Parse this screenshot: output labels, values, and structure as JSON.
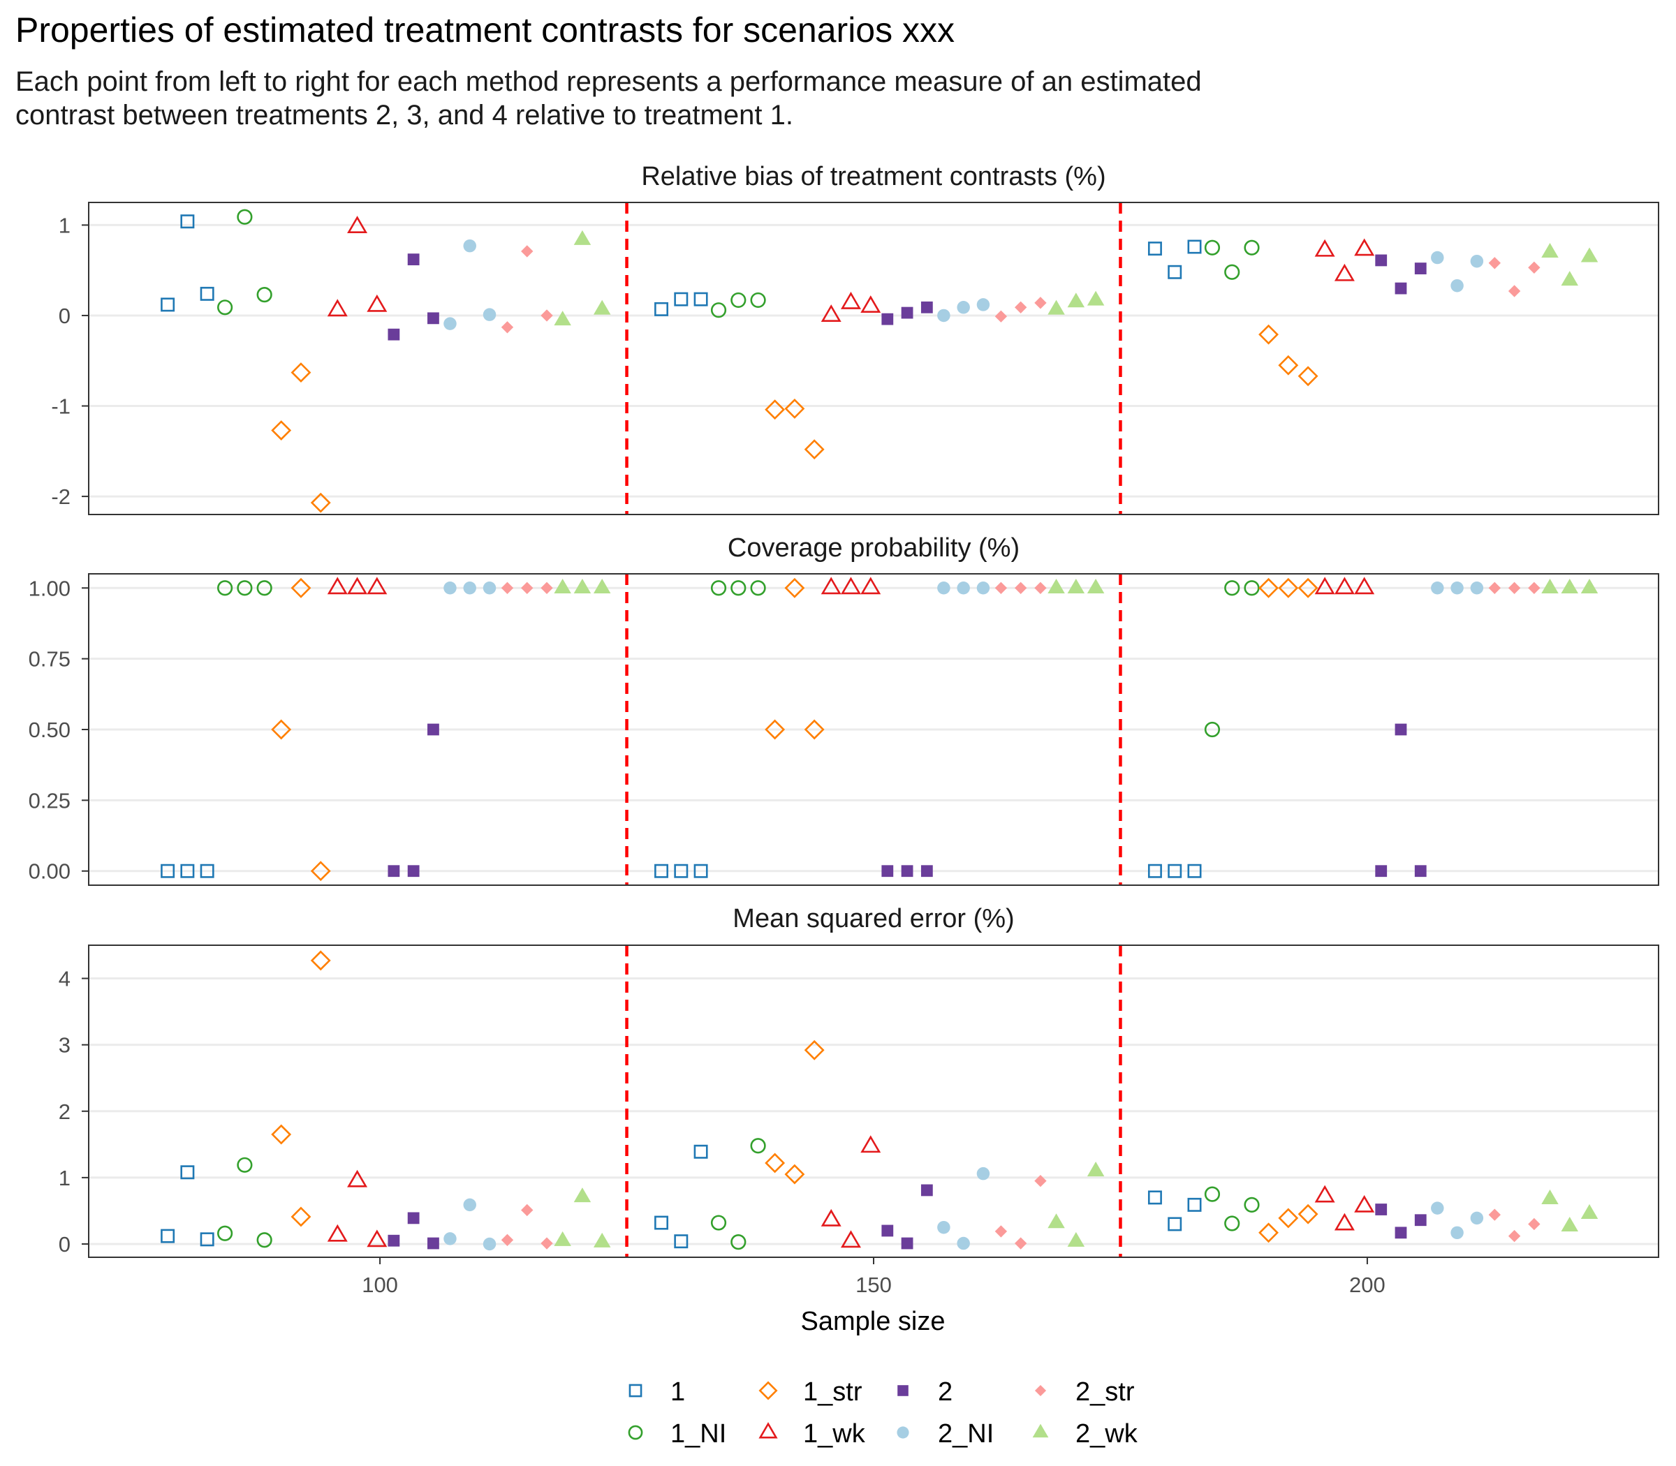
{
  "chart_data": {
    "type": "scatter",
    "title": "Properties of estimated treatment contrasts for scenarios xxx",
    "subtitle_lines": [
      "Each point from left to right for each method represents a performance measure of an estimated",
      "contrast between treatments 2, 3, and 4 relative to treatment 1."
    ],
    "xlabel": "Sample size",
    "x_ticks": [
      100,
      150,
      200
    ],
    "xlim": [
      70.5,
      229.5
    ],
    "sample_sizes": [
      100,
      150,
      200
    ],
    "reference_lines_x": [
      125,
      175
    ],
    "methods": [
      "1",
      "1_NI",
      "1_str",
      "1_wk",
      "2",
      "2_NI",
      "2_str",
      "2_wk"
    ],
    "method_styles": {
      "1": {
        "shape": "square-open",
        "color": "#1F78B4"
      },
      "1_NI": {
        "shape": "circle-open",
        "color": "#33A02C"
      },
      "1_str": {
        "shape": "diamond-open",
        "color": "#FF7F00"
      },
      "1_wk": {
        "shape": "triangle-open",
        "color": "#E31A1C"
      },
      "2": {
        "shape": "square-filled",
        "color": "#6A3D9A"
      },
      "2_NI": {
        "shape": "circle-filled",
        "color": "#A6CEE3"
      },
      "2_str": {
        "shape": "diamond-filled",
        "color": "#FB9A99"
      },
      "2_wk": {
        "shape": "triangle-filled",
        "color": "#B2DF8A"
      }
    },
    "reference_line_color": "#FF0000",
    "panels": [
      {
        "title": "Relative bias of treatment contrasts (%)",
        "ylim": [
          -2.2,
          1.25
        ],
        "y_ticks": [
          -2,
          -1,
          0,
          1
        ],
        "y_tick_labels": [
          "-2",
          "-1",
          "0",
          "1"
        ],
        "series": [
          {
            "name": "1",
            "x": [
              78.5,
              80.5,
              82.5,
              128.5,
              130.5,
              132.5,
              178.5,
              180.5,
              182.5
            ],
            "values": [
              0.12,
              1.04,
              0.24,
              0.07,
              0.18,
              0.18,
              0.74,
              0.48,
              0.76
            ]
          },
          {
            "name": "1_NI",
            "x": [
              84.3,
              86.3,
              88.3,
              134.3,
              136.3,
              138.3,
              184.3,
              186.3,
              188.3
            ],
            "values": [
              0.09,
              1.09,
              0.23,
              0.06,
              0.17,
              0.17,
              0.75,
              0.48,
              0.75
            ]
          },
          {
            "name": "1_str",
            "x": [
              90.0,
              92.0,
              94.0,
              140.0,
              142.0,
              144.0,
              190.0,
              192.0,
              194.0
            ],
            "values": [
              -1.27,
              -0.63,
              -2.07,
              -1.04,
              -1.03,
              -1.48,
              -0.21,
              -0.55,
              -0.67
            ]
          },
          {
            "name": "1_wk",
            "x": [
              95.7,
              97.7,
              99.7,
              145.7,
              147.7,
              149.7,
              195.7,
              197.7,
              199.7
            ],
            "values": [
              0.06,
              0.98,
              0.11,
              0.0,
              0.14,
              0.1,
              0.72,
              0.45,
              0.73
            ]
          },
          {
            "name": "2",
            "x": [
              101.4,
              103.4,
              105.4,
              151.4,
              153.4,
              155.4,
              201.4,
              203.4,
              205.4
            ],
            "values": [
              -0.21,
              0.62,
              -0.03,
              -0.04,
              0.03,
              0.09,
              0.61,
              0.3,
              0.52
            ]
          },
          {
            "name": "2_NI",
            "x": [
              107.1,
              109.1,
              111.1,
              157.1,
              159.1,
              161.1,
              207.1,
              209.1,
              211.1
            ],
            "values": [
              -0.09,
              0.77,
              0.01,
              0.0,
              0.09,
              0.12,
              0.64,
              0.33,
              0.6
            ]
          },
          {
            "name": "2_str",
            "x": [
              112.9,
              114.9,
              116.9,
              162.9,
              164.9,
              166.9,
              212.9,
              214.9,
              216.9
            ],
            "values": [
              -0.13,
              0.71,
              0.0,
              -0.01,
              0.09,
              0.14,
              0.58,
              0.27,
              0.53
            ]
          },
          {
            "name": "2_wk",
            "x": [
              118.5,
              120.5,
              122.5,
              168.5,
              170.5,
              172.5,
              218.5,
              220.5,
              222.5
            ],
            "values": [
              -0.05,
              0.84,
              0.07,
              0.07,
              0.15,
              0.17,
              0.7,
              0.39,
              0.65
            ]
          }
        ]
      },
      {
        "title": "Coverage probability (%)",
        "ylim": [
          -0.05,
          1.05
        ],
        "y_ticks": [
          0,
          0.25,
          0.5,
          0.75,
          1
        ],
        "y_tick_labels": [
          "0.00",
          "0.25",
          "0.50",
          "0.75",
          "1.00"
        ],
        "series": [
          {
            "name": "1",
            "x": [
              78.5,
              80.5,
              82.5,
              128.5,
              130.5,
              132.5,
              178.5,
              180.5,
              182.5
            ],
            "values": [
              0,
              0,
              0,
              0,
              0,
              0,
              0,
              0,
              0
            ]
          },
          {
            "name": "1_NI",
            "x": [
              84.3,
              86.3,
              88.3,
              134.3,
              136.3,
              138.3,
              184.3,
              186.3,
              188.3
            ],
            "values": [
              1,
              1,
              1,
              1,
              1,
              1,
              0.5,
              1,
              1
            ]
          },
          {
            "name": "1_str",
            "x": [
              90.0,
              92.0,
              94.0,
              140.0,
              142.0,
              144.0,
              190.0,
              192.0,
              194.0
            ],
            "values": [
              0.5,
              1,
              0,
              0.5,
              1,
              0.5,
              1,
              1,
              1
            ]
          },
          {
            "name": "1_wk",
            "x": [
              95.7,
              97.7,
              99.7,
              145.7,
              147.7,
              149.7,
              195.7,
              197.7,
              199.7
            ],
            "values": [
              1,
              1,
              1,
              1,
              1,
              1,
              1,
              1,
              1
            ]
          },
          {
            "name": "2",
            "x": [
              101.4,
              103.4,
              105.4,
              151.4,
              153.4,
              155.4,
              201.4,
              203.4,
              205.4
            ],
            "values": [
              0,
              0,
              0.5,
              0,
              0,
              0,
              0,
              0.5,
              0
            ]
          },
          {
            "name": "2_NI",
            "x": [
              107.1,
              109.1,
              111.1,
              157.1,
              159.1,
              161.1,
              207.1,
              209.1,
              211.1
            ],
            "values": [
              1,
              1,
              1,
              1,
              1,
              1,
              1,
              1,
              1
            ]
          },
          {
            "name": "2_str",
            "x": [
              112.9,
              114.9,
              116.9,
              162.9,
              164.9,
              166.9,
              212.9,
              214.9,
              216.9
            ],
            "values": [
              1,
              1,
              1,
              1,
              1,
              1,
              1,
              1,
              1
            ]
          },
          {
            "name": "2_wk",
            "x": [
              118.5,
              120.5,
              122.5,
              168.5,
              170.5,
              172.5,
              218.5,
              220.5,
              222.5
            ],
            "values": [
              1,
              1,
              1,
              1,
              1,
              1,
              1,
              1,
              1
            ]
          }
        ]
      },
      {
        "title": "Mean squared error (%)",
        "ylim": [
          -0.2,
          4.5
        ],
        "y_ticks": [
          0,
          1,
          2,
          3,
          4
        ],
        "y_tick_labels": [
          "0",
          "1",
          "2",
          "3",
          "4"
        ],
        "series": [
          {
            "name": "1",
            "x": [
              78.5,
              80.5,
              82.5,
              128.5,
              130.5,
              132.5,
              178.5,
              180.5,
              182.5
            ],
            "values": [
              0.12,
              1.08,
              0.07,
              0.32,
              0.04,
              1.39,
              0.7,
              0.3,
              0.59
            ]
          },
          {
            "name": "1_NI",
            "x": [
              84.3,
              86.3,
              88.3,
              134.3,
              136.3,
              138.3,
              184.3,
              186.3,
              188.3
            ],
            "values": [
              0.16,
              1.19,
              0.06,
              0.32,
              0.03,
              1.48,
              0.75,
              0.31,
              0.59
            ]
          },
          {
            "name": "1_str",
            "x": [
              90.0,
              92.0,
              94.0,
              140.0,
              142.0,
              144.0,
              190.0,
              192.0,
              194.0
            ],
            "values": [
              1.65,
              0.41,
              4.27,
              1.22,
              1.05,
              2.92,
              0.17,
              0.39,
              0.45
            ]
          },
          {
            "name": "1_wk",
            "x": [
              95.7,
              97.7,
              99.7,
              145.7,
              147.7,
              149.7,
              195.7,
              197.7,
              199.7
            ],
            "values": [
              0.13,
              0.95,
              0.05,
              0.36,
              0.04,
              1.47,
              0.72,
              0.3,
              0.57
            ]
          },
          {
            "name": "2",
            "x": [
              101.4,
              103.4,
              105.4,
              151.4,
              153.4,
              155.4,
              201.4,
              203.4,
              205.4
            ],
            "values": [
              0.05,
              0.39,
              0.01,
              0.2,
              0.01,
              0.81,
              0.52,
              0.17,
              0.36
            ]
          },
          {
            "name": "2_NI",
            "x": [
              107.1,
              109.1,
              111.1,
              157.1,
              159.1,
              161.1,
              207.1,
              209.1,
              211.1
            ],
            "values": [
              0.08,
              0.59,
              0.0,
              0.25,
              0.01,
              1.06,
              0.54,
              0.17,
              0.39
            ]
          },
          {
            "name": "2_str",
            "x": [
              112.9,
              114.9,
              116.9,
              162.9,
              164.9,
              166.9,
              212.9,
              214.9,
              216.9
            ],
            "values": [
              0.06,
              0.51,
              0.01,
              0.19,
              0.01,
              0.95,
              0.44,
              0.12,
              0.3
            ]
          },
          {
            "name": "2_wk",
            "x": [
              118.5,
              120.5,
              122.5,
              168.5,
              170.5,
              172.5,
              218.5,
              220.5,
              222.5
            ],
            "values": [
              0.05,
              0.71,
              0.03,
              0.32,
              0.04,
              1.1,
              0.68,
              0.27,
              0.46
            ]
          }
        ]
      }
    ],
    "legend": {
      "position": "bottom",
      "rows": [
        [
          "1",
          "1_str",
          "2",
          "2_str"
        ],
        [
          "1_NI",
          "1_wk",
          "2_NI",
          "2_wk"
        ]
      ]
    }
  }
}
